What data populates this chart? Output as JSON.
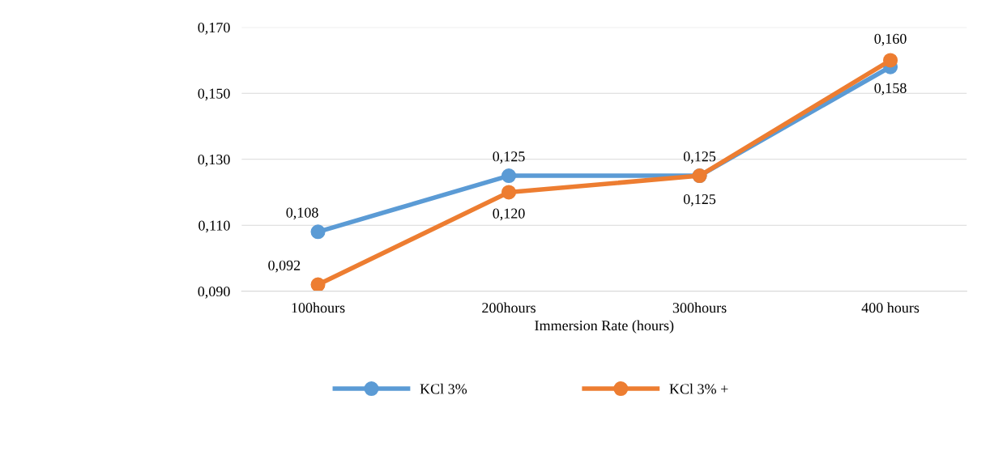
{
  "chart_data": {
    "type": "line",
    "xlabel": "Immersion Rate (hours)",
    "categories": [
      "100hours",
      "200hours",
      "300hours",
      "400 hours"
    ],
    "series": [
      {
        "name": "KCl 3%",
        "color": "#5b9bd5",
        "values": [
          0.108,
          0.125,
          0.125,
          0.158
        ],
        "value_labels": [
          "0,108",
          "0,125",
          "0,125",
          "0,158"
        ]
      },
      {
        "name": "KCl 3% +",
        "color": "#ed7d31",
        "values": [
          0.092,
          0.12,
          0.125,
          0.16
        ],
        "value_labels": [
          "0,092",
          "0,120",
          "0,125",
          "0,160"
        ]
      }
    ],
    "ylim": [
      0.09,
      0.17
    ],
    "yticks": [
      {
        "value": 0.09,
        "label": "0,090"
      },
      {
        "value": 0.11,
        "label": "0,110"
      },
      {
        "value": 0.13,
        "label": "0,130"
      },
      {
        "value": 0.15,
        "label": "0,150"
      },
      {
        "value": 0.17,
        "label": "0,170"
      }
    ],
    "grid": "y",
    "legend": "bottom",
    "marker": "circle",
    "line_style": "solid"
  }
}
